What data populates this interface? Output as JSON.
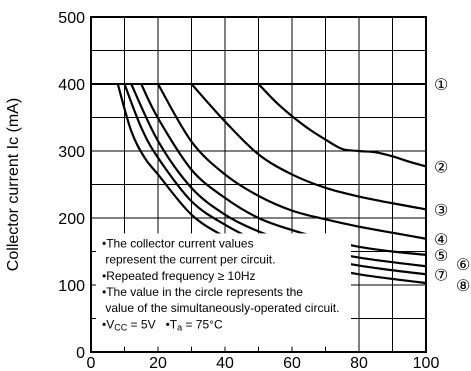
{
  "chart_data": {
    "type": "line",
    "title": "",
    "xlabel": "",
    "ylabel": "Collector current  Ic (mA)",
    "xlim": [
      0,
      100
    ],
    "ylim": [
      0,
      500
    ],
    "grid": true,
    "x_ticks": [
      "0",
      "20",
      "40",
      "60",
      "80",
      "100"
    ],
    "y_ticks": [
      "0",
      "100",
      "200",
      "300",
      "400",
      "500"
    ],
    "series": [
      {
        "name": "①",
        "x": [
          0,
          100
        ],
        "y": [
          400,
          400
        ]
      },
      {
        "name": "②",
        "x": [
          50,
          55,
          60,
          65,
          70,
          75,
          80,
          85,
          90,
          95,
          100
        ],
        "y": [
          400,
          374,
          352,
          333,
          317,
          303,
          300,
          298,
          292,
          284,
          277
        ]
      },
      {
        "name": "③",
        "x": [
          30,
          40,
          50,
          60,
          70,
          80,
          90,
          100
        ],
        "y": [
          400,
          344,
          295,
          265,
          245,
          232,
          222,
          213
        ]
      },
      {
        "name": "④",
        "x": [
          20,
          30,
          40,
          50,
          60,
          70,
          80,
          90,
          100
        ],
        "y": [
          400,
          314,
          265,
          233,
          211,
          198,
          187,
          178,
          169
        ]
      },
      {
        "name": "⑤",
        "x": [
          15,
          20,
          30,
          40,
          50,
          60,
          70,
          80,
          90,
          100
        ],
        "y": [
          400,
          349,
          272,
          230,
          200,
          182,
          168,
          157,
          150,
          145
        ]
      },
      {
        "name": "⑥",
        "x": [
          12,
          20,
          30,
          40,
          50,
          60,
          70,
          80,
          90,
          100
        ],
        "y": [
          400,
          315,
          245,
          205,
          180,
          163,
          150,
          141,
          134,
          128
        ]
      },
      {
        "name": "⑦",
        "x": [
          10,
          15,
          20,
          30,
          40,
          50,
          60,
          70,
          80,
          90,
          100
        ],
        "y": [
          400,
          335,
          290,
          225,
          190,
          165,
          149,
          138,
          129,
          122,
          116
        ]
      },
      {
        "name": "⑧",
        "x": [
          8,
          12,
          16,
          20,
          30,
          40,
          50,
          60,
          70,
          80,
          90,
          100
        ],
        "y": [
          400,
          330,
          290,
          265,
          205,
          172,
          150,
          136,
          125,
          116,
          109,
          103
        ]
      }
    ],
    "notes": [
      "•The collector current values",
      " represent the current per circuit.",
      "•Repeated frequency ≥ 10Hz",
      "•The value in the circle represents the",
      " value of the simultaneously-operated circuit."
    ],
    "conditions": {
      "vcc": {
        "prefix": "•V",
        "sub": "CC",
        "suffix": " = 5V"
      },
      "ta": {
        "prefix": "•T",
        "sub": "a",
        "suffix": " = 75°C"
      }
    }
  }
}
